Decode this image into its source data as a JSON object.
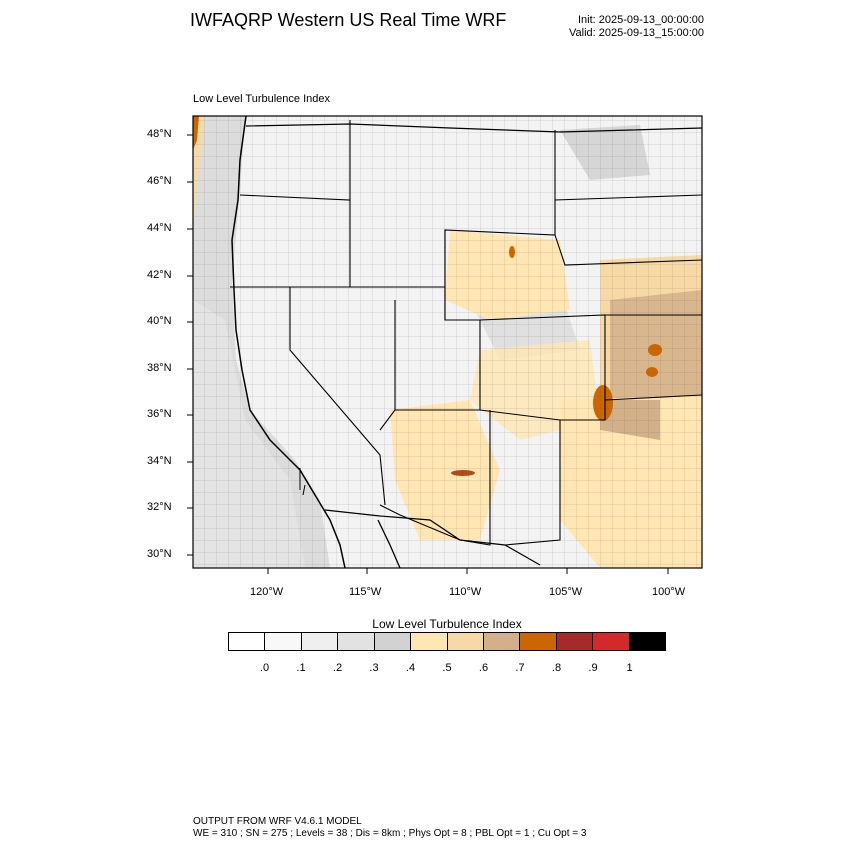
{
  "header": {
    "title": "IWFAQRP Western US Real Time WRF",
    "init": "Init: 2025-09-13_00:00:00",
    "valid": "Valid: 2025-09-13_15:00:00"
  },
  "panel": {
    "title": "Low Level Turbulence Index"
  },
  "axes": {
    "lat_labels": [
      "48°N",
      "46°N",
      "44°N",
      "42°N",
      "40°N",
      "38°N",
      "36°N",
      "34°N",
      "32°N",
      "30°N"
    ],
    "lon_labels": [
      "120°W",
      "115°W",
      "110°W",
      "105°W",
      "100°W"
    ]
  },
  "colorbar": {
    "title": "Low Level Turbulence Index",
    "labels": [
      ".0",
      ".1",
      ".2",
      ".3",
      ".4",
      ".5",
      ".6",
      ".7",
      ".8",
      ".9",
      "1"
    ],
    "colors": [
      "#ffffff",
      "#f8f8f8",
      "#efefef",
      "#e2e2e2",
      "#d2d2d2",
      "#ffe6b3",
      "#f7d9a6",
      "#d2b08a",
      "#cc6600",
      "#a52a2a",
      "#d22a2a",
      "#000000"
    ]
  },
  "footer": {
    "line1": "OUTPUT FROM WRF V4.6.1 MODEL",
    "line2": "WE = 310 ; SN = 275 ; Levels = 38 ; Dis = 8km ; Phys Opt = 8 ; PBL Opt = 1 ; Cu Opt = 3"
  }
}
